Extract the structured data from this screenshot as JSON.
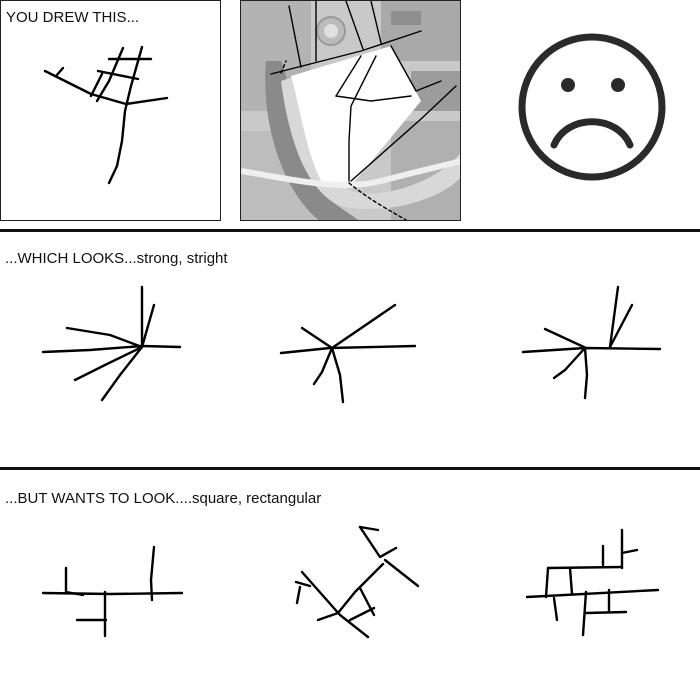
{
  "sections": {
    "top_caption": "YOU DREW THIS...",
    "middle_caption": "...WHICH LOOKS...strong, stright",
    "bottom_caption": "...BUT WANTS TO LOOK....square, rectangular"
  },
  "icons": {
    "mood": "sad-face-icon",
    "map": "aerial-map-image"
  }
}
